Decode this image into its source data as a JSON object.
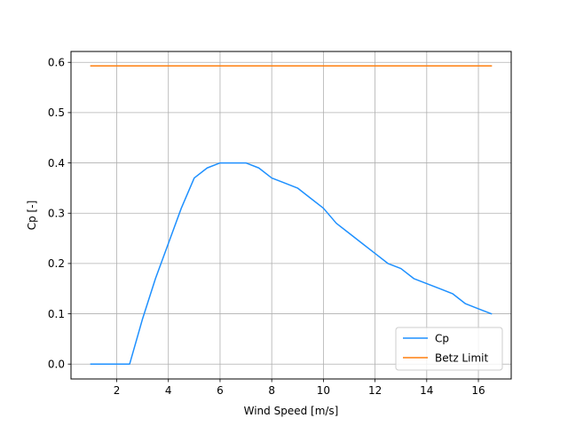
{
  "chart_data": {
    "type": "line",
    "title": "",
    "xlabel": "Wind Speed [m/s]",
    "ylabel": "Cp [-]",
    "xlim": [
      0.23,
      17.27
    ],
    "ylim": [
      -0.0296,
      0.6216
    ],
    "xticks": [
      2,
      4,
      6,
      8,
      10,
      12,
      14,
      16
    ],
    "yticks": [
      0.0,
      0.1,
      0.2,
      0.3,
      0.4,
      0.5,
      0.6
    ],
    "xtick_labels": [
      "2",
      "4",
      "6",
      "8",
      "10",
      "12",
      "14",
      "16"
    ],
    "ytick_labels": [
      "0.0",
      "0.1",
      "0.2",
      "0.3",
      "0.4",
      "0.5",
      "0.6"
    ],
    "grid": true,
    "legend_position": "bottom-right",
    "series": [
      {
        "name": "Cp",
        "color": "#1e90ff",
        "x": [
          1,
          1.5,
          2,
          2.5,
          3,
          3.5,
          4,
          4.5,
          5,
          5.5,
          6,
          6.5,
          7,
          7.5,
          8,
          8.5,
          9,
          9.5,
          10,
          10.5,
          11,
          11.5,
          12,
          12.5,
          13,
          13.5,
          14,
          14.5,
          15,
          15.5,
          16,
          16.5
        ],
        "y": [
          0.0,
          0.0,
          0.0,
          0.0,
          0.09,
          0.17,
          0.24,
          0.31,
          0.37,
          0.39,
          0.4,
          0.4,
          0.4,
          0.39,
          0.37,
          0.36,
          0.35,
          0.33,
          0.31,
          0.28,
          0.26,
          0.24,
          0.22,
          0.2,
          0.19,
          0.17,
          0.16,
          0.15,
          0.14,
          0.12,
          0.11,
          0.1
        ]
      },
      {
        "name": "Betz Limit",
        "color": "#ff7f0e",
        "x": [
          1,
          16.5
        ],
        "y": [
          0.593,
          0.593
        ]
      }
    ]
  }
}
